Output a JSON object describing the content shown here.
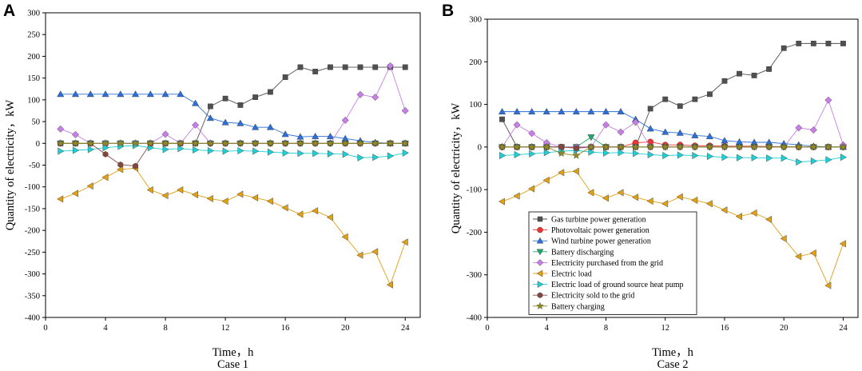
{
  "figure": {
    "legend": [
      {
        "name": "Gas turbine power generation",
        "color": "#505050",
        "marker": "square"
      },
      {
        "name": "Photovoltaic power generation",
        "color": "#ee3333",
        "marker": "circle"
      },
      {
        "name": "Wind turbine power generation",
        "color": "#2c6fd8",
        "marker": "triangle-up"
      },
      {
        "name": "Battery discharging",
        "color": "#22a56a",
        "marker": "triangle-down"
      },
      {
        "name": "Electricity purchased from the grid",
        "color": "#c77ee6",
        "marker": "diamond"
      },
      {
        "name": "Electric load",
        "color": "#e0a015",
        "marker": "triangle-left"
      },
      {
        "name": "Electric load of ground source heat pump",
        "color": "#1ecfd6",
        "marker": "triangle-right"
      },
      {
        "name": "Electricity sold to the grid",
        "color": "#85473d",
        "marker": "hexagon"
      },
      {
        "name": "Battery charging",
        "color": "#8f8a1e",
        "marker": "star"
      }
    ]
  },
  "chart_data": [
    {
      "panel": "A",
      "type": "line",
      "caption": "Case 1",
      "xlabel": "Time，h",
      "ylabel": "Quantity of electricity，kW",
      "xlim": [
        0,
        25
      ],
      "ylim": [
        -400,
        300
      ],
      "xticks": [
        0,
        4,
        8,
        12,
        16,
        20,
        24
      ],
      "yticks": [
        -400,
        -350,
        -300,
        -250,
        -200,
        -150,
        -100,
        -50,
        0,
        50,
        100,
        150,
        200,
        250,
        300
      ],
      "x": [
        1,
        2,
        3,
        4,
        5,
        6,
        7,
        8,
        9,
        10,
        11,
        12,
        13,
        14,
        15,
        16,
        17,
        18,
        19,
        20,
        21,
        22,
        23,
        24
      ],
      "series": [
        {
          "name": "Gas turbine power generation",
          "values": [
            0,
            0,
            0,
            0,
            0,
            0,
            0,
            0,
            0,
            0,
            85,
            103,
            88,
            106,
            118,
            152,
            175,
            165,
            175,
            175,
            175,
            175,
            175,
            175
          ]
        },
        {
          "name": "Photovoltaic power generation",
          "values": [
            0,
            0,
            0,
            0,
            0,
            0,
            0,
            0,
            0,
            0,
            0,
            0,
            0,
            0,
            0,
            0,
            0,
            0,
            0,
            0,
            0,
            0,
            0,
            0
          ]
        },
        {
          "name": "Wind turbine power generation",
          "values": [
            113,
            113,
            113,
            113,
            113,
            113,
            113,
            113,
            113,
            92,
            58,
            48,
            46,
            37,
            37,
            21,
            15,
            16,
            16,
            11,
            6,
            2,
            0,
            0
          ]
        },
        {
          "name": "Battery discharging",
          "values": [
            0,
            0,
            0,
            0,
            0,
            0,
            0,
            0,
            0,
            0,
            0,
            0,
            0,
            0,
            0,
            0,
            0,
            0,
            0,
            0,
            0,
            0,
            0,
            0
          ]
        },
        {
          "name": "Electricity purchased from the grid",
          "values": [
            33,
            20,
            0,
            0,
            0,
            0,
            0,
            21,
            0,
            42,
            0,
            0,
            0,
            0,
            0,
            0,
            0,
            0,
            0,
            53,
            112,
            106,
            178,
            75
          ]
        },
        {
          "name": "Electric load",
          "values": [
            -128,
            -115,
            -98,
            -78,
            -60,
            -57,
            -107,
            -120,
            -107,
            -118,
            -127,
            -133,
            -117,
            -125,
            -133,
            -148,
            -163,
            -155,
            -170,
            -215,
            -257,
            -249,
            -325,
            -227
          ]
        },
        {
          "name": "Electric load of ground source heat pump",
          "values": [
            -18,
            -16,
            -14,
            -10,
            -7,
            -5,
            -10,
            -14,
            -12,
            -15,
            -17,
            -18,
            -17,
            -18,
            -20,
            -22,
            -23,
            -23,
            -24,
            -25,
            -33,
            -32,
            -29,
            -22
          ]
        },
        {
          "name": "Electricity sold to the grid",
          "values": [
            0,
            0,
            0,
            -25,
            -49,
            -52,
            0,
            0,
            0,
            0,
            0,
            0,
            0,
            0,
            0,
            0,
            0,
            0,
            0,
            0,
            0,
            0,
            0,
            0
          ]
        },
        {
          "name": "Battery charging",
          "values": [
            0,
            0,
            0,
            0,
            0,
            0,
            0,
            0,
            0,
            0,
            0,
            0,
            0,
            0,
            0,
            0,
            0,
            0,
            0,
            0,
            0,
            0,
            0,
            0
          ]
        }
      ]
    },
    {
      "panel": "B",
      "type": "line",
      "caption": "Case 2",
      "xlabel": "Time，h",
      "ylabel": "Quantity of electricity，kW",
      "xlim": [
        0,
        25
      ],
      "ylim": [
        -400,
        300
      ],
      "xticks": [
        0,
        4,
        8,
        12,
        16,
        20,
        24
      ],
      "yticks": [
        -400,
        -300,
        -200,
        -100,
        0,
        100,
        200,
        300
      ],
      "x": [
        1,
        2,
        3,
        4,
        5,
        6,
        7,
        8,
        9,
        10,
        11,
        12,
        13,
        14,
        15,
        16,
        17,
        18,
        19,
        20,
        21,
        22,
        23,
        24
      ],
      "series": [
        {
          "name": "Gas turbine power generation",
          "values": [
            65,
            0,
            0,
            0,
            0,
            0,
            0,
            0,
            0,
            0,
            90,
            112,
            96,
            112,
            124,
            155,
            172,
            168,
            183,
            232,
            243,
            243,
            243,
            243
          ]
        },
        {
          "name": "Photovoltaic power generation",
          "values": [
            0,
            0,
            0,
            0,
            0,
            0,
            0,
            0,
            0,
            10,
            12,
            5,
            5,
            3,
            3,
            2,
            2,
            2,
            1,
            1,
            0,
            0,
            0,
            0
          ]
        },
        {
          "name": "Wind turbine power generation",
          "values": [
            83,
            83,
            83,
            83,
            83,
            83,
            83,
            83,
            83,
            65,
            43,
            35,
            33,
            27,
            25,
            15,
            12,
            11,
            11,
            8,
            5,
            2,
            0,
            0
          ]
        },
        {
          "name": "Battery discharging",
          "values": [
            0,
            0,
            0,
            0,
            0,
            0,
            23,
            0,
            0,
            0,
            0,
            0,
            0,
            0,
            0,
            0,
            0,
            0,
            0,
            0,
            0,
            0,
            0,
            0
          ]
        },
        {
          "name": "Electricity purchased from the grid",
          "values": [
            0,
            52,
            32,
            10,
            0,
            0,
            0,
            52,
            35,
            58,
            0,
            0,
            0,
            0,
            0,
            0,
            0,
            0,
            0,
            0,
            45,
            40,
            110,
            5
          ]
        },
        {
          "name": "Electric load",
          "values": [
            -128,
            -115,
            -98,
            -78,
            -60,
            -57,
            -107,
            -120,
            -107,
            -118,
            -127,
            -133,
            -117,
            -125,
            -133,
            -148,
            -163,
            -155,
            -170,
            -215,
            -257,
            -249,
            -325,
            -227
          ]
        },
        {
          "name": "Electric load of ground source heat pump",
          "values": [
            -20,
            -18,
            -16,
            -13,
            -10,
            -8,
            -12,
            -14,
            -13,
            -15,
            -18,
            -20,
            -19,
            -20,
            -22,
            -24,
            -25,
            -25,
            -26,
            -26,
            -35,
            -33,
            -30,
            -24
          ]
        },
        {
          "name": "Electricity sold to the grid",
          "values": [
            0,
            0,
            0,
            0,
            0,
            -3,
            0,
            0,
            0,
            0,
            0,
            0,
            0,
            0,
            0,
            0,
            0,
            0,
            0,
            0,
            0,
            0,
            0,
            0
          ]
        },
        {
          "name": "Battery charging",
          "values": [
            0,
            0,
            0,
            0,
            -15,
            -20,
            0,
            0,
            0,
            0,
            0,
            0,
            0,
            0,
            0,
            0,
            0,
            0,
            0,
            0,
            0,
            0,
            0,
            0
          ]
        }
      ]
    }
  ]
}
